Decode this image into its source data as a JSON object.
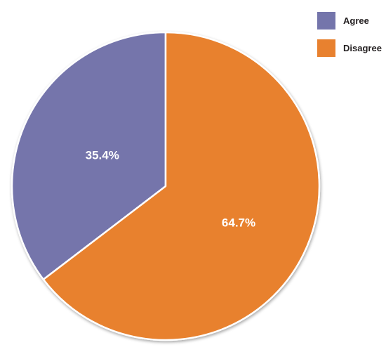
{
  "chart_data": {
    "type": "pie",
    "slices": [
      {
        "label": "Agree",
        "value": 35.4,
        "value_label": "35.4%",
        "color": "#7475ab"
      },
      {
        "label": "Disagree",
        "value": 64.7,
        "value_label": "64.7%",
        "color": "#e8812f"
      }
    ],
    "legend_position": "top-right",
    "start_angle": "12 o'clock",
    "direction": "counterclockwise for Agree, remainder Disagree"
  }
}
